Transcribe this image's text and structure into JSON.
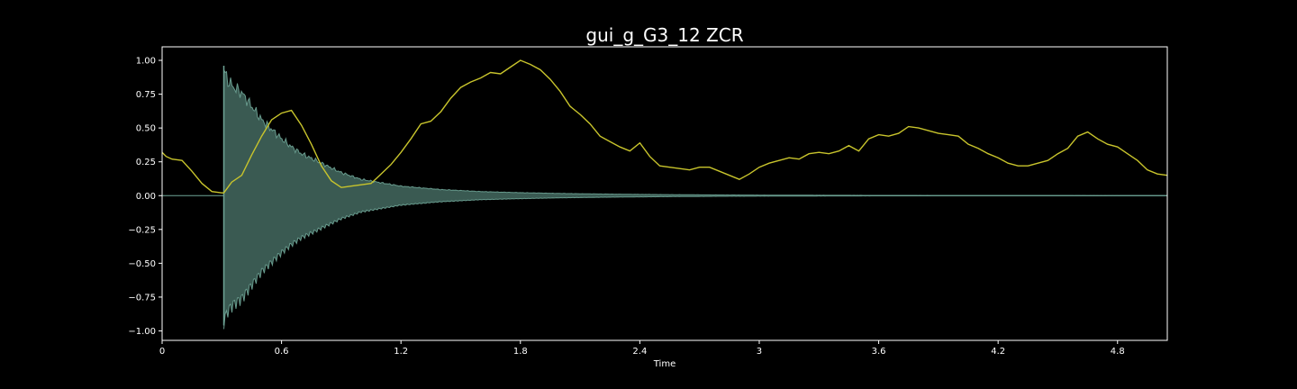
{
  "chart_data": {
    "type": "line",
    "title": "gui_g_G3_12 ZCR",
    "xlabel": "Time",
    "ylabel": "",
    "xlim": [
      0,
      5.05
    ],
    "ylim": [
      -1.07,
      1.1
    ],
    "grid": false,
    "x_ticks": [
      {
        "value": 0,
        "label": "0"
      },
      {
        "value": 0.6,
        "label": "0.6"
      },
      {
        "value": 1.2,
        "label": "1.2"
      },
      {
        "value": 1.8,
        "label": "1.8"
      },
      {
        "value": 2.4,
        "label": "2.4"
      },
      {
        "value": 3.0,
        "label": "3"
      },
      {
        "value": 3.6,
        "label": "3.6"
      },
      {
        "value": 4.2,
        "label": "4.2"
      },
      {
        "value": 4.8,
        "label": "4.8"
      }
    ],
    "y_ticks": [
      {
        "value": 1.0,
        "label": "1.00"
      },
      {
        "value": 0.75,
        "label": "0.75"
      },
      {
        "value": 0.5,
        "label": "0.50"
      },
      {
        "value": 0.25,
        "label": "0.25"
      },
      {
        "value": 0.0,
        "label": "0.00"
      },
      {
        "value": -0.25,
        "label": "−0.25"
      },
      {
        "value": -0.5,
        "label": "−0.50"
      },
      {
        "value": -0.75,
        "label": "−0.75"
      },
      {
        "value": -1.0,
        "label": "−1.00"
      }
    ],
    "colors": {
      "background": "#000000",
      "axes_frame": "#ffffff",
      "waveform_fill": "#3a5a52",
      "waveform_edge": "#6fa597",
      "zcr_line": "#c8c42c"
    },
    "series": [
      {
        "kind": "waveform-envelope",
        "onset": 0.31,
        "peak": 0.96,
        "envelope": {
          "t": [
            0.31,
            0.33,
            0.36,
            0.4,
            0.45,
            0.5,
            0.55,
            0.6,
            0.65,
            0.7,
            0.8,
            0.9,
            1.0,
            1.2,
            1.4,
            1.6,
            1.8,
            2.0,
            2.2,
            2.4,
            2.6,
            2.8,
            3.0,
            3.2,
            3.5,
            4.0,
            5.05
          ],
          "amp": [
            0.93,
            0.85,
            0.8,
            0.76,
            0.66,
            0.56,
            0.49,
            0.42,
            0.36,
            0.31,
            0.24,
            0.17,
            0.12,
            0.07,
            0.045,
            0.03,
            0.022,
            0.016,
            0.012,
            0.009,
            0.007,
            0.005,
            0.004,
            0.003,
            0.002,
            0.001,
            0.0005
          ]
        }
      },
      {
        "kind": "zcr",
        "x": [
          0,
          0.02,
          0.05,
          0.1,
          0.15,
          0.2,
          0.25,
          0.3,
          0.31,
          0.35,
          0.4,
          0.45,
          0.5,
          0.55,
          0.6,
          0.65,
          0.7,
          0.75,
          0.8,
          0.85,
          0.9,
          0.95,
          1.0,
          1.05,
          1.1,
          1.15,
          1.2,
          1.25,
          1.3,
          1.35,
          1.4,
          1.45,
          1.5,
          1.55,
          1.6,
          1.65,
          1.7,
          1.75,
          1.8,
          1.85,
          1.9,
          1.95,
          2.0,
          2.05,
          2.1,
          2.15,
          2.2,
          2.25,
          2.3,
          2.35,
          2.4,
          2.45,
          2.5,
          2.55,
          2.6,
          2.65,
          2.7,
          2.75,
          2.8,
          2.85,
          2.9,
          2.95,
          3.0,
          3.05,
          3.1,
          3.15,
          3.2,
          3.25,
          3.3,
          3.35,
          3.4,
          3.45,
          3.5,
          3.55,
          3.6,
          3.65,
          3.7,
          3.75,
          3.8,
          3.85,
          3.9,
          3.95,
          4.0,
          4.05,
          4.1,
          4.15,
          4.2,
          4.25,
          4.3,
          4.35,
          4.4,
          4.45,
          4.5,
          4.55,
          4.6,
          4.65,
          4.7,
          4.75,
          4.8,
          4.85,
          4.9,
          4.95,
          5.0,
          5.05
        ],
        "y": [
          0.32,
          0.29,
          0.27,
          0.26,
          0.18,
          0.09,
          0.03,
          0.02,
          0.02,
          0.1,
          0.15,
          0.3,
          0.44,
          0.56,
          0.61,
          0.63,
          0.52,
          0.38,
          0.22,
          0.11,
          0.06,
          0.07,
          0.08,
          0.09,
          0.16,
          0.23,
          0.32,
          0.42,
          0.53,
          0.55,
          0.62,
          0.72,
          0.8,
          0.84,
          0.87,
          0.91,
          0.9,
          0.95,
          1.0,
          0.97,
          0.93,
          0.86,
          0.77,
          0.66,
          0.6,
          0.53,
          0.44,
          0.4,
          0.36,
          0.33,
          0.39,
          0.29,
          0.22,
          0.21,
          0.2,
          0.19,
          0.21,
          0.21,
          0.18,
          0.15,
          0.12,
          0.16,
          0.21,
          0.24,
          0.26,
          0.28,
          0.27,
          0.31,
          0.32,
          0.31,
          0.33,
          0.37,
          0.33,
          0.42,
          0.45,
          0.44,
          0.46,
          0.51,
          0.5,
          0.48,
          0.46,
          0.45,
          0.44,
          0.38,
          0.35,
          0.31,
          0.28,
          0.24,
          0.22,
          0.22,
          0.24,
          0.26,
          0.31,
          0.35,
          0.44,
          0.47,
          0.42,
          0.38,
          0.36,
          0.31,
          0.26,
          0.19,
          0.16,
          0.15
        ]
      }
    ]
  }
}
